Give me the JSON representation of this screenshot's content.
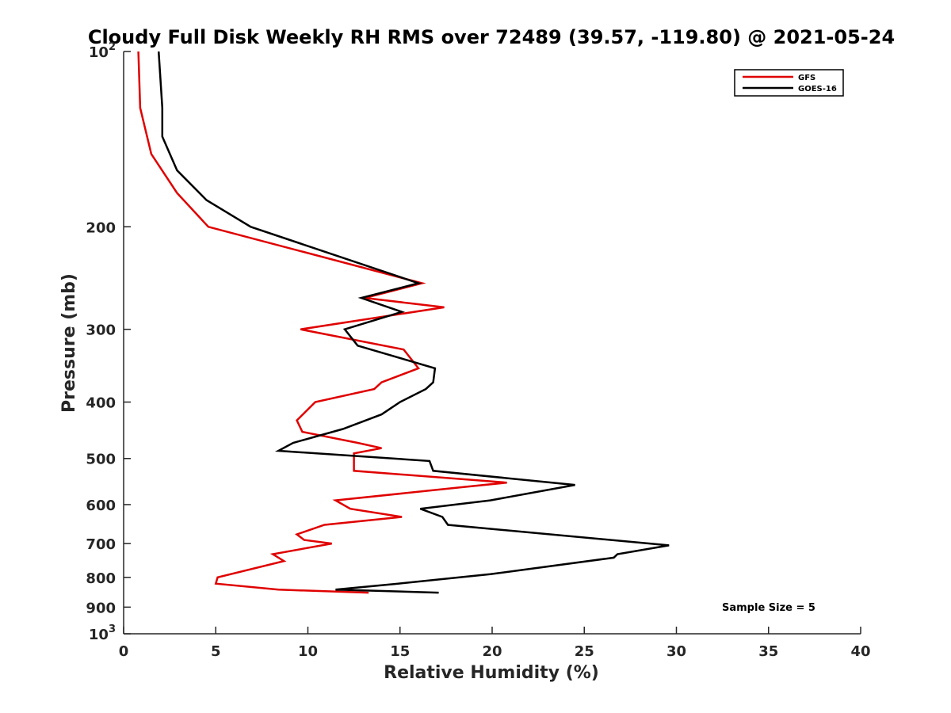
{
  "chart_data": {
    "type": "line",
    "title": "Cloudy Full Disk Weekly RH RMS over 72489 (39.57, -119.80) @ 2021-05-24",
    "xlabel": "Relative Humidity (%)",
    "ylabel": "Pressure (mb)",
    "xlim": [
      0,
      40
    ],
    "ylim": [
      100,
      1000
    ],
    "y_scale": "log",
    "y_reversed": true,
    "x_ticks": [
      "0",
      "5",
      "10",
      "15",
      "20",
      "25",
      "30",
      "35",
      "40"
    ],
    "y_ticks": [
      {
        "value": 100,
        "base": "10",
        "exp": "2"
      },
      {
        "value": 200,
        "label": "200"
      },
      {
        "value": 300,
        "label": "300"
      },
      {
        "value": 400,
        "label": "400"
      },
      {
        "value": 500,
        "label": "500"
      },
      {
        "value": 600,
        "label": "600"
      },
      {
        "value": 700,
        "label": "700"
      },
      {
        "value": 800,
        "label": "800"
      },
      {
        "value": 900,
        "label": "900"
      },
      {
        "value": 1000,
        "base": "10",
        "exp": "3"
      }
    ],
    "legend_position": "top-right",
    "annotation": "Sample Size = 5",
    "series": [
      {
        "name": "GFS",
        "color": "#e00000",
        "points": [
          [
            0.8,
            100
          ],
          [
            0.9,
            125
          ],
          [
            1.5,
            150
          ],
          [
            2.9,
            175
          ],
          [
            4.6,
            200
          ],
          [
            16.2,
            250
          ],
          [
            13.1,
            265
          ],
          [
            17.4,
            275
          ],
          [
            9.6,
            300
          ],
          [
            15.2,
            325
          ],
          [
            16.0,
            350
          ],
          [
            14.0,
            370
          ],
          [
            13.6,
            380
          ],
          [
            10.4,
            400
          ],
          [
            9.4,
            430
          ],
          [
            9.7,
            450
          ],
          [
            12.7,
            470
          ],
          [
            14.0,
            480
          ],
          [
            12.5,
            490
          ],
          [
            12.5,
            500
          ],
          [
            12.5,
            525
          ],
          [
            20.8,
            550
          ],
          [
            18.4,
            560
          ],
          [
            11.5,
            590
          ],
          [
            12.3,
            610
          ],
          [
            15.1,
            630
          ],
          [
            10.9,
            650
          ],
          [
            9.4,
            675
          ],
          [
            9.8,
            690
          ],
          [
            11.3,
            700
          ],
          [
            8.1,
            730
          ],
          [
            8.7,
            750
          ],
          [
            5.1,
            800
          ],
          [
            5.0,
            820
          ],
          [
            8.4,
            840
          ],
          [
            13.3,
            850
          ]
        ]
      },
      {
        "name": "GOES-16",
        "color": "#000000",
        "points": [
          [
            1.9,
            100
          ],
          [
            2.1,
            125
          ],
          [
            2.1,
            140
          ],
          [
            2.9,
            160
          ],
          [
            4.5,
            180
          ],
          [
            6.9,
            200
          ],
          [
            16.0,
            250
          ],
          [
            12.9,
            265
          ],
          [
            15.1,
            280
          ],
          [
            12.0,
            300
          ],
          [
            12.7,
            320
          ],
          [
            16.9,
            350
          ],
          [
            16.8,
            370
          ],
          [
            16.4,
            380
          ],
          [
            15.0,
            400
          ],
          [
            14.0,
            420
          ],
          [
            11.9,
            445
          ],
          [
            9.2,
            470
          ],
          [
            8.4,
            485
          ],
          [
            16.6,
            505
          ],
          [
            16.8,
            525
          ],
          [
            24.5,
            555
          ],
          [
            19.9,
            590
          ],
          [
            16.1,
            610
          ],
          [
            17.3,
            630
          ],
          [
            17.6,
            650
          ],
          [
            29.6,
            705
          ],
          [
            26.8,
            730
          ],
          [
            26.6,
            740
          ],
          [
            19.9,
            790
          ],
          [
            14.9,
            820
          ],
          [
            11.5,
            840
          ],
          [
            17.1,
            850
          ]
        ]
      }
    ]
  }
}
